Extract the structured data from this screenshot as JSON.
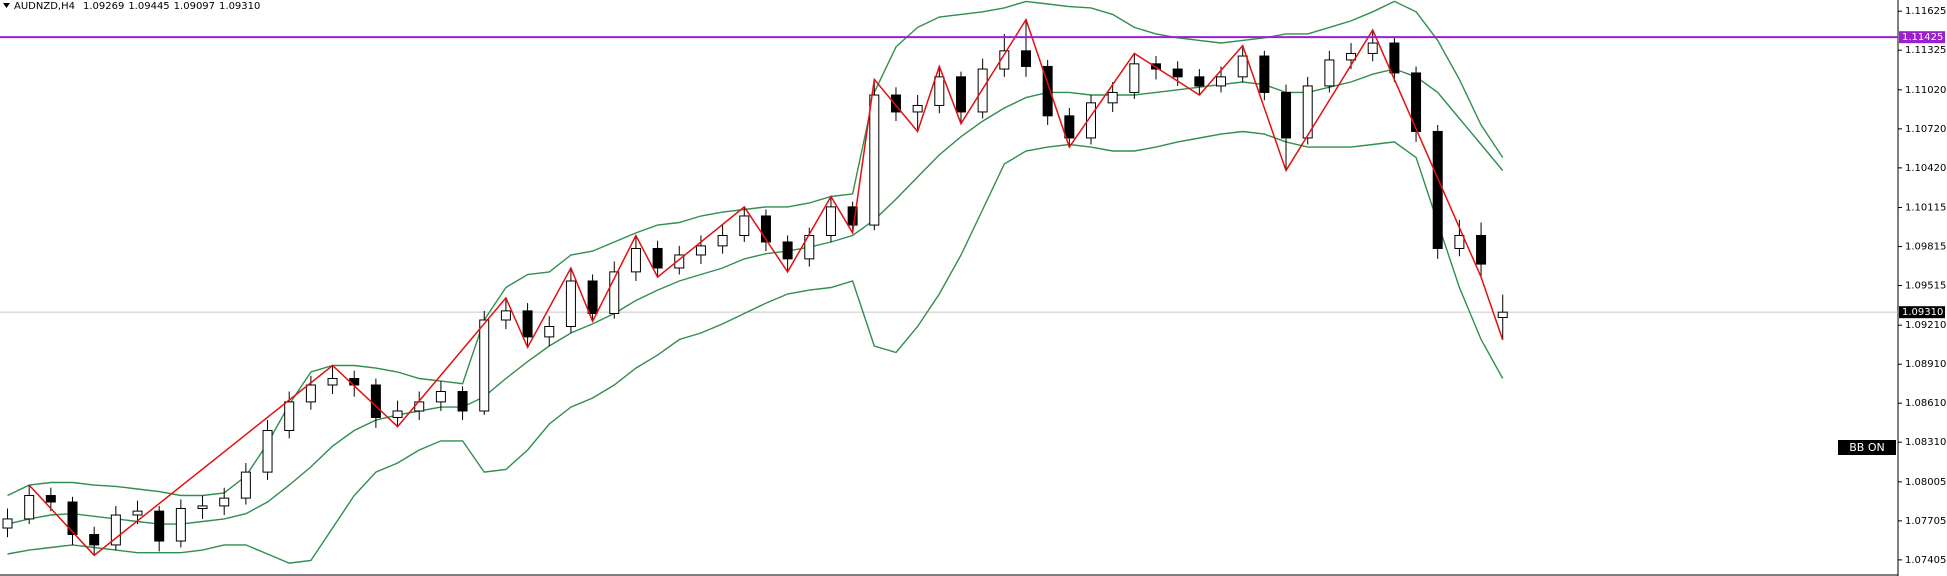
{
  "chart_data": {
    "type": "candlestick",
    "symbol": "AUDNZD,H4",
    "ylim": [
      1.07281,
      1.11711
    ],
    "yticks": [
      1.11625,
      1.11325,
      {
        "value": 1.1102,
        "label": "1.11020"
      },
      {
        "value": 1.1072,
        "label": "1.10720"
      },
      {
        "value": 1.1042,
        "label": "1.10420"
      },
      1.10115,
      1.09815,
      1.09515,
      {
        "value": 1.0921,
        "label": "1.09210"
      },
      {
        "value": 1.0891,
        "label": "1.08910"
      },
      {
        "value": 1.0861,
        "label": "1.08610"
      },
      {
        "value": 1.0831,
        "label": "1.08310"
      },
      1.08005,
      1.07705,
      1.07405
    ],
    "series": [
      {
        "color": "#000000",
        "open": [
          1.0765,
          1.0772,
          1.079,
          1.0785,
          1.076,
          1.0752,
          1.0775,
          1.0778,
          1.0755,
          1.078,
          1.0782,
          1.0788,
          1.0808,
          1.084,
          1.0862,
          1.0875,
          1.088,
          1.0875,
          1.085,
          1.0855,
          1.0862,
          1.087,
          1.0855,
          1.0925,
          1.0932,
          1.0912,
          1.092,
          1.0955,
          1.093,
          1.0962,
          1.098,
          1.0965,
          1.0975,
          1.0982,
          1.099,
          1.1005,
          1.0985,
          1.0972,
          1.099,
          1.1012,
          1.0998,
          1.1098,
          1.1085,
          1.109,
          1.1112,
          1.1085,
          1.1118,
          1.1132,
          1.112,
          1.1082,
          1.1065,
          1.1092,
          1.11,
          1.1122,
          1.1118,
          1.1112,
          1.1105,
          1.1112,
          1.1128,
          1.11,
          1.1065,
          1.1105,
          1.1125,
          1.113,
          1.1138,
          1.1115,
          1.107,
          1.098,
          1.099,
          1.09269
        ],
        "high": [
          1.078,
          1.0798,
          1.0796,
          1.0789,
          1.0766,
          1.0782,
          1.0786,
          1.0782,
          1.0787,
          1.079,
          1.0796,
          1.0815,
          1.0848,
          1.087,
          1.0882,
          1.089,
          1.0886,
          1.088,
          1.0863,
          1.087,
          1.0878,
          1.0874,
          1.0932,
          1.0942,
          1.0938,
          1.0928,
          1.0965,
          1.096,
          1.097,
          1.099,
          1.0986,
          1.0982,
          1.099,
          1.0998,
          1.1012,
          1.101,
          1.099,
          1.0996,
          1.102,
          1.1016,
          1.111,
          1.1104,
          1.1098,
          1.112,
          1.1116,
          1.1126,
          1.1145,
          1.1156,
          1.1125,
          1.1088,
          1.1098,
          1.1108,
          1.113,
          1.1128,
          1.1124,
          1.1118,
          1.112,
          1.1136,
          1.1132,
          1.1106,
          1.1112,
          1.1132,
          1.1138,
          1.1148,
          1.1142,
          1.112,
          1.1075,
          1.1002,
          1.1,
          1.09445
        ],
        "low": [
          1.0758,
          1.0768,
          1.0778,
          1.0752,
          1.0744,
          1.0748,
          1.0768,
          1.0747,
          1.075,
          1.0772,
          1.0775,
          1.0783,
          1.0802,
          1.0834,
          1.0856,
          1.0868,
          1.0866,
          1.0842,
          1.0843,
          1.0848,
          1.0855,
          1.0848,
          1.0852,
          1.0918,
          1.0904,
          1.0905,
          1.0915,
          1.0924,
          1.0926,
          1.0955,
          1.0958,
          1.096,
          1.0968,
          1.0976,
          1.0985,
          1.0978,
          1.0962,
          1.0966,
          1.0985,
          1.0992,
          1.0994,
          1.1078,
          1.107,
          1.1084,
          1.1076,
          1.108,
          1.1112,
          1.1112,
          1.1075,
          1.1058,
          1.106,
          1.1085,
          1.1095,
          1.111,
          1.1105,
          1.1098,
          1.11,
          1.1108,
          1.1094,
          1.104,
          1.106,
          1.11,
          1.1118,
          1.1124,
          1.1108,
          1.1062,
          1.0972,
          1.0974,
          1.0958,
          1.09097
        ],
        "close": [
          1.0772,
          1.079,
          1.0785,
          1.076,
          1.0752,
          1.0775,
          1.0778,
          1.0755,
          1.078,
          1.0782,
          1.0788,
          1.0808,
          1.084,
          1.0862,
          1.0875,
          1.088,
          1.0875,
          1.085,
          1.0855,
          1.0862,
          1.087,
          1.0855,
          1.0925,
          1.0932,
          1.0912,
          1.092,
          1.0955,
          1.093,
          1.0962,
          1.098,
          1.0965,
          1.0975,
          1.0982,
          1.099,
          1.1005,
          1.0985,
          1.0972,
          1.099,
          1.1012,
          1.0998,
          1.1098,
          1.1085,
          1.109,
          1.1112,
          1.1085,
          1.1118,
          1.1132,
          1.112,
          1.1082,
          1.1065,
          1.1092,
          1.11,
          1.1122,
          1.1118,
          1.1112,
          1.1105,
          1.1112,
          1.1128,
          1.11,
          1.1065,
          1.1105,
          1.1125,
          1.113,
          1.1138,
          1.1115,
          1.107,
          1.098,
          1.099,
          1.0968,
          1.0931
        ]
      }
    ],
    "bands": [
      {
        "color": "#2f8f4e",
        "values": [
          1.079,
          1.0798,
          1.08,
          1.08,
          1.0798,
          1.0797,
          1.0795,
          1.0793,
          1.079,
          1.079,
          1.0792,
          1.0805,
          1.083,
          1.086,
          1.0885,
          1.089,
          1.089,
          1.0888,
          1.0885,
          1.088,
          1.0878,
          1.0876,
          1.0925,
          1.095,
          1.096,
          1.0962,
          1.0975,
          1.0978,
          1.0985,
          1.0992,
          1.0998,
          1.1,
          1.1005,
          1.1008,
          1.101,
          1.1012,
          1.1012,
          1.1015,
          1.102,
          1.1022,
          1.11,
          1.1135,
          1.115,
          1.1158,
          1.116,
          1.1162,
          1.1165,
          1.117,
          1.1168,
          1.1166,
          1.1165,
          1.116,
          1.115,
          1.1145,
          1.1142,
          1.114,
          1.1138,
          1.114,
          1.1142,
          1.1145,
          1.1145,
          1.115,
          1.1155,
          1.1162,
          1.117,
          1.1162,
          1.114,
          1.111,
          1.1075,
          1.105
        ]
      },
      {
        "color": "#2f8f4e",
        "values": [
          1.0768,
          1.0772,
          1.0775,
          1.0776,
          1.0774,
          1.0772,
          1.077,
          1.0768,
          1.0768,
          1.077,
          1.0772,
          1.0776,
          1.0785,
          1.0798,
          1.0812,
          1.0828,
          1.084,
          1.0848,
          1.0852,
          1.0855,
          1.0858,
          1.0858,
          1.0866,
          1.088,
          1.0893,
          1.0905,
          1.0915,
          1.0922,
          1.093,
          1.094,
          1.0948,
          1.0955,
          1.096,
          1.0965,
          1.0972,
          1.0976,
          1.0978,
          1.0981,
          1.0985,
          1.099,
          1.1002,
          1.1018,
          1.1035,
          1.1052,
          1.1066,
          1.1078,
          1.1088,
          1.1096,
          1.11,
          1.11,
          1.1098,
          1.1098,
          1.1098,
          1.11,
          1.1102,
          1.1104,
          1.1106,
          1.1108,
          1.1106,
          1.11,
          1.11,
          1.1104,
          1.1108,
          1.1114,
          1.1118,
          1.1112,
          1.11,
          1.108,
          1.106,
          1.104
        ]
      },
      {
        "color": "#2f8f4e",
        "values": [
          1.0745,
          1.0748,
          1.075,
          1.0752,
          1.075,
          1.0748,
          1.0746,
          1.0746,
          1.0746,
          1.0748,
          1.0752,
          1.0752,
          1.0745,
          1.0738,
          1.074,
          1.0765,
          1.079,
          1.0808,
          1.0815,
          1.0825,
          1.0832,
          1.0832,
          1.0808,
          1.081,
          1.0825,
          1.0845,
          1.0858,
          1.0865,
          1.0875,
          1.0888,
          1.0898,
          1.091,
          1.0915,
          1.0922,
          1.093,
          1.0938,
          1.0945,
          1.0948,
          1.095,
          1.0955,
          1.0905,
          1.09,
          1.092,
          1.0945,
          1.0975,
          1.101,
          1.1045,
          1.1055,
          1.1058,
          1.106,
          1.1058,
          1.1055,
          1.1055,
          1.1058,
          1.1062,
          1.1065,
          1.1068,
          1.107,
          1.1068,
          1.1062,
          1.1058,
          1.1058,
          1.1058,
          1.106,
          1.1062,
          1.105,
          1.1,
          1.095,
          1.091,
          1.088
        ]
      }
    ],
    "zigzag": {
      "color": "#e31010",
      "x": [
        1,
        4,
        15,
        18,
        23,
        24,
        26,
        27,
        29,
        30,
        34,
        36,
        38,
        39,
        40,
        42,
        43,
        44,
        47,
        49,
        52,
        55,
        57,
        59,
        63,
        68,
        69
      ],
      "values": [
        1.0798,
        1.0744,
        1.089,
        1.0843,
        1.0942,
        1.0904,
        1.0965,
        1.0924,
        1.099,
        1.0958,
        1.1012,
        1.0962,
        1.102,
        1.0992,
        1.111,
        1.107,
        1.112,
        1.1076,
        1.1156,
        1.1058,
        1.113,
        1.1098,
        1.1136,
        1.104,
        1.1148,
        1.0958,
        1.09097
      ]
    },
    "level_line": {
      "value": 1.11425,
      "color": "#9b1fd1"
    },
    "price_line": {
      "value": 1.0931,
      "label": "1.09310",
      "color": "#c8c8c8"
    },
    "indicator_label": "BB ON"
  }
}
